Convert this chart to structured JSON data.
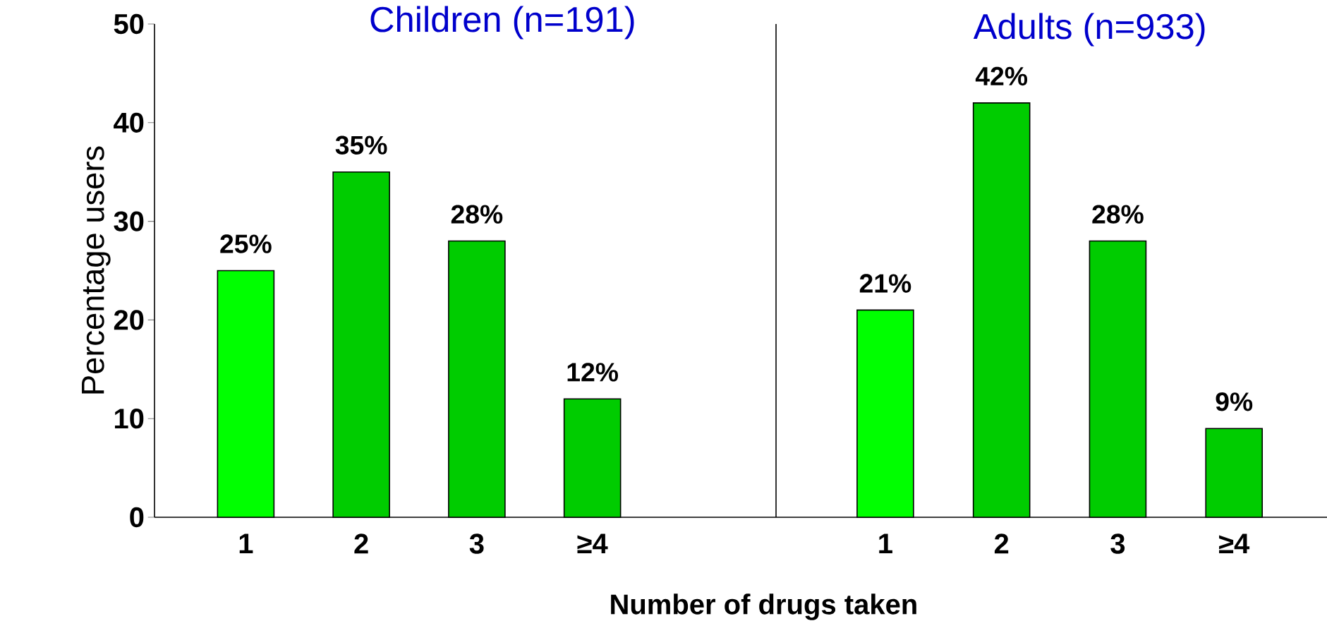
{
  "chart_data": [
    {
      "type": "bar",
      "title": "Children (n=191)",
      "xlabel": "Number of drugs taken",
      "ylabel": "Percentage users",
      "categories": [
        "1",
        "2",
        "3",
        "≥4"
      ],
      "values": [
        25,
        35,
        28,
        12
      ],
      "colors": [
        "#00ff00",
        "#00cc00",
        "#00cc00",
        "#00cc00"
      ],
      "value_labels": [
        "25%",
        "35%",
        "28%",
        "12%"
      ],
      "ylim": [
        0,
        50
      ],
      "yticks": [
        0,
        10,
        20,
        30,
        40,
        50
      ]
    },
    {
      "type": "bar",
      "title": "Adults (n=933)",
      "categories": [
        "1",
        "2",
        "3",
        "≥4"
      ],
      "values": [
        21,
        42,
        28,
        9
      ],
      "colors": [
        "#00ff00",
        "#00cc00",
        "#00cc00",
        "#00cc00"
      ],
      "value_labels": [
        "21%",
        "42%",
        "28%",
        "9%"
      ],
      "ylim": [
        0,
        50
      ],
      "yticks": [
        0,
        10,
        20,
        30,
        40,
        50
      ],
      "tick_labels": "x"
    }
  ]
}
